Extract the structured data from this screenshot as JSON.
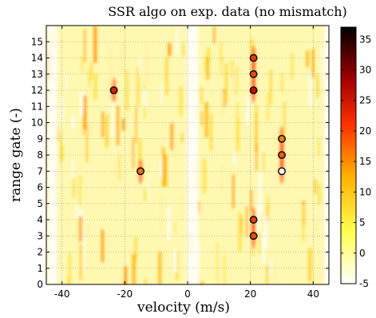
{
  "chart_data": {
    "type": "heatmap",
    "title": "SSR algo on exp. data (no mismatch)",
    "xlabel": "velocity (m/s)",
    "ylabel": "range gate (-)",
    "xlim": [
      -45,
      45
    ],
    "ylim": [
      0,
      16
    ],
    "x_ticks": [
      "-40",
      "-20",
      "0",
      "20",
      "40"
    ],
    "x_tick_values": [
      -40,
      -20,
      0,
      20,
      40
    ],
    "y_ticks": [
      "0",
      "1",
      "2",
      "3",
      "4",
      "5",
      "6",
      "7",
      "8",
      "9",
      "10",
      "11",
      "12",
      "13",
      "14",
      "15"
    ],
    "y_tick_values": [
      0,
      1,
      2,
      3,
      4,
      5,
      6,
      7,
      8,
      9,
      10,
      11,
      12,
      13,
      14,
      15
    ],
    "colorbar": {
      "min": -5,
      "max": 37,
      "ticks": [
        "-5",
        "0",
        "5",
        "10",
        "15",
        "20",
        "25",
        "30",
        "35"
      ],
      "tick_values": [
        -5,
        0,
        5,
        10,
        15,
        20,
        25,
        30,
        35
      ],
      "colormap": "hot-reversed"
    },
    "grid": true,
    "points": [
      {
        "x": -23.5,
        "y": 12,
        "color": "#d92000"
      },
      {
        "x": -15,
        "y": 7,
        "color": "#f07000"
      },
      {
        "x": 21,
        "y": 14,
        "color": "#e24000"
      },
      {
        "x": 21,
        "y": 13,
        "color": "#e65000"
      },
      {
        "x": 21,
        "y": 12,
        "color": "#c81000"
      },
      {
        "x": 21,
        "y": 4,
        "color": "#e24000"
      },
      {
        "x": 21,
        "y": 3,
        "color": "#e65000"
      },
      {
        "x": 30,
        "y": 9,
        "color": "#f08000"
      },
      {
        "x": 30,
        "y": 8,
        "color": "#ec6000"
      },
      {
        "x": 30,
        "y": 7,
        "color": "#ffffff"
      }
    ]
  }
}
